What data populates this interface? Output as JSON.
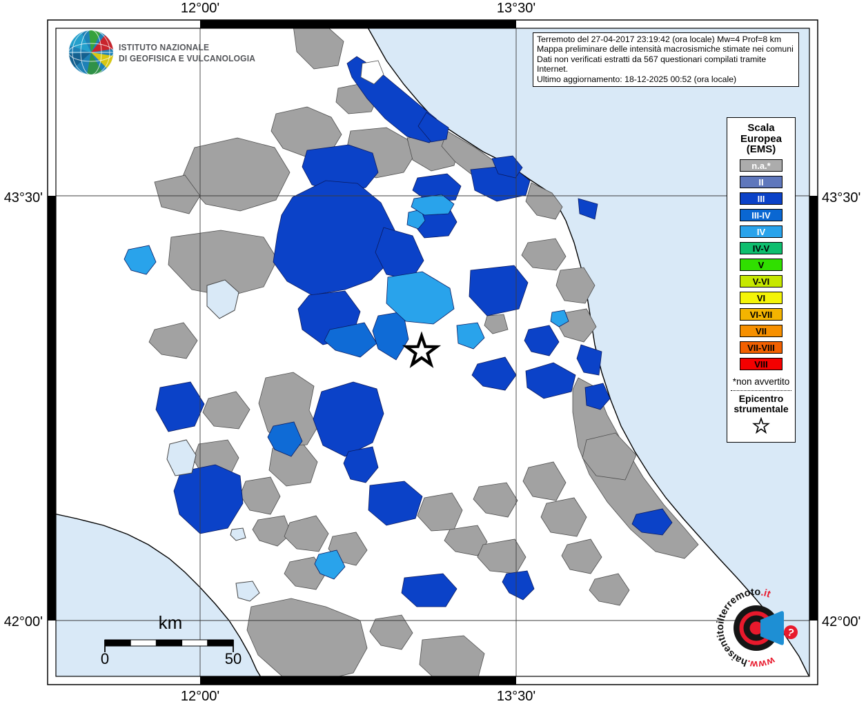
{
  "coords": {
    "lon_a": "12°00'",
    "lon_b": "13°30'",
    "lat_a": "43°30'",
    "lat_b": "42°00'"
  },
  "info_box": {
    "lines": [
      "Terremoto del 27-04-2017 23:19:42 (ora locale) Mw=4 Prof=8 km",
      "Mappa preliminare delle intensità macrosismiche stimate nei comuni",
      "Dati non verificati estratti da 567 questionari compilati tramite Internet.",
      "Ultimo aggiornamento: 18-12-2025 00:52 (ora locale)"
    ]
  },
  "ingv": {
    "line1": "ISTITUTO NAZIONALE",
    "line2": "DI GEOFISICA E VULCANOLOGIA"
  },
  "legend": {
    "title": "Scala\nEuropea\n(EMS)",
    "items": [
      {
        "label": "n.a.*",
        "color": "#ACACAC",
        "text": "#FFFFFF"
      },
      {
        "label": "II",
        "color": "#5F77BC",
        "text": "#FFFFFF"
      },
      {
        "label": "III",
        "color": "#0B42C8",
        "text": "#FFFFFF"
      },
      {
        "label": "III-IV",
        "color": "#0A67D2",
        "text": "#FFFFFF"
      },
      {
        "label": "IV",
        "color": "#29A3EB",
        "text": "#FFFFFF"
      },
      {
        "label": "IV-V",
        "color": "#0EBE6E",
        "text": "#000000"
      },
      {
        "label": "V",
        "color": "#30DF00",
        "text": "#000000"
      },
      {
        "label": "V-VI",
        "color": "#C6E800",
        "text": "#000000"
      },
      {
        "label": "VI",
        "color": "#F4F407",
        "text": "#000000"
      },
      {
        "label": "VI-VII",
        "color": "#F4B400",
        "text": "#000000"
      },
      {
        "label": "VII",
        "color": "#F79000",
        "text": "#000000"
      },
      {
        "label": "VII-VIII",
        "color": "#F26000",
        "text": "#000000"
      },
      {
        "label": "VIII",
        "color": "#F40000",
        "text": "#000000"
      }
    ],
    "footnote": "*non avvertito",
    "epicenter_label": "Epicentro\nstrumentale"
  },
  "scale_bar": {
    "unit": "km",
    "start": "0",
    "end": "50"
  },
  "watermark": {
    "www": "www.",
    "mid": "haisentitoilterremoto",
    "it": ".it",
    "q": "?"
  },
  "map_colors": {
    "sea": "#D9E9F7",
    "na": "#A2A2A2",
    "iii": "#0B42C8",
    "iii_iv": "#0F6BD6",
    "iv": "#29A3EB"
  }
}
